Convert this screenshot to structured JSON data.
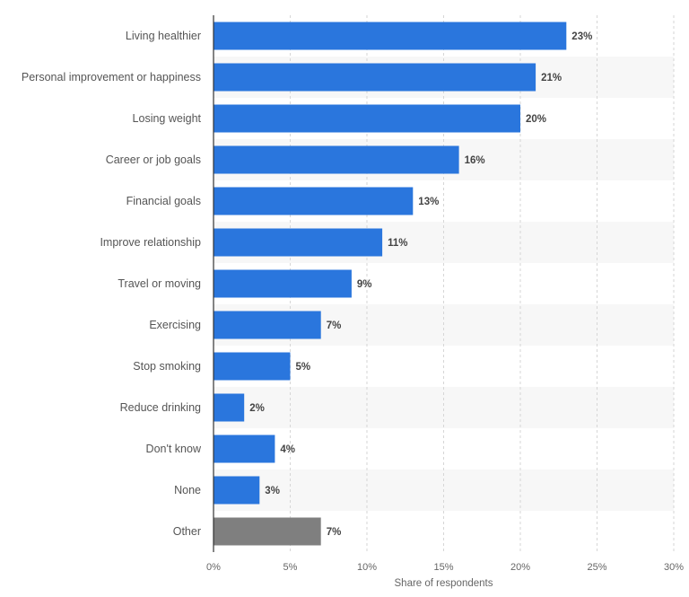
{
  "chart_data": {
    "type": "bar",
    "orientation": "horizontal",
    "categories": [
      "Living healthier",
      "Personal improvement or happiness",
      "Losing weight",
      "Career or job goals",
      "Financial goals",
      "Improve relationship",
      "Travel or moving",
      "Exercising",
      "Stop smoking",
      "Reduce drinking",
      "Don't know",
      "None",
      "Other"
    ],
    "values": [
      23,
      21,
      20,
      16,
      13,
      11,
      9,
      7,
      5,
      2,
      4,
      3,
      7
    ],
    "value_labels": [
      "23%",
      "21%",
      "20%",
      "16%",
      "13%",
      "11%",
      "9%",
      "7%",
      "5%",
      "2%",
      "4%",
      "3%",
      "7%"
    ],
    "xlabel": "Share of respondents",
    "xlim": [
      0,
      30
    ],
    "xticks": [
      0,
      5,
      10,
      15,
      20,
      25,
      30
    ],
    "xtick_labels": [
      "0%",
      "5%",
      "10%",
      "15%",
      "20%",
      "25%",
      "30%"
    ],
    "grid": true,
    "colors": {
      "bar": "#2a76dd",
      "bar_highlight": "#7f7f7f",
      "stripe": "#f7f7f7",
      "grid": "#d6d6d6",
      "axis": "#333333"
    },
    "highlight_categories": [
      "Other"
    ]
  }
}
